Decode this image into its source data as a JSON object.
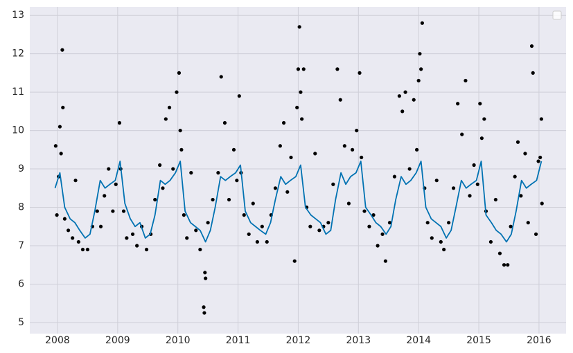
{
  "chart_data": {
    "type": "scatter",
    "xlim": [
      2007.54,
      2016.45
    ],
    "xticks": [
      2008,
      2009,
      2010,
      2011,
      2012,
      2013,
      2014,
      2015,
      2016
    ],
    "ylim": [
      4.71,
      13.22
    ],
    "yticks": [
      5,
      6,
      7,
      8,
      9,
      10,
      11,
      12,
      13
    ],
    "grid": true,
    "background": "#eaeaf2",
    "series": [
      {
        "type": "scatter",
        "color": "#000000",
        "x": [
          2007.97,
          2007.99,
          2008.02,
          2008.04,
          2008.06,
          2008.08,
          2008.09,
          2008.12,
          2008.18,
          2008.25,
          2008.3,
          2008.35,
          2008.42,
          2008.5,
          2008.58,
          2008.66,
          2008.72,
          2008.78,
          2008.85,
          2008.92,
          2008.97,
          2009.03,
          2009.05,
          2009.1,
          2009.15,
          2009.25,
          2009.32,
          2009.4,
          2009.48,
          2009.55,
          2009.62,
          2009.7,
          2009.75,
          2009.8,
          2009.86,
          2009.92,
          2009.98,
          2010.02,
          2010.04,
          2010.06,
          2010.1,
          2010.15,
          2010.22,
          2010.3,
          2010.37,
          2010.43,
          2010.44,
          2010.45,
          2010.46,
          2010.5,
          2010.58,
          2010.67,
          2010.72,
          2010.78,
          2010.85,
          2010.93,
          2010.98,
          2011.02,
          2011.05,
          2011.1,
          2011.18,
          2011.25,
          2011.32,
          2011.4,
          2011.48,
          2011.55,
          2011.62,
          2011.7,
          2011.76,
          2011.82,
          2011.88,
          2011.94,
          2011.98,
          2012.0,
          2012.02,
          2012.04,
          2012.06,
          2012.09,
          2012.14,
          2012.2,
          2012.28,
          2012.35,
          2012.42,
          2012.5,
          2012.58,
          2012.65,
          2012.7,
          2012.77,
          2012.84,
          2012.9,
          2012.97,
          2013.02,
          2013.05,
          2013.1,
          2013.18,
          2013.25,
          2013.32,
          2013.4,
          2013.45,
          2013.52,
          2013.6,
          2013.68,
          2013.73,
          2013.78,
          2013.85,
          2013.92,
          2013.97,
          2014.0,
          2014.02,
          2014.04,
          2014.06,
          2014.1,
          2014.15,
          2014.22,
          2014.3,
          2014.37,
          2014.42,
          2014.5,
          2014.58,
          2014.65,
          2014.72,
          2014.78,
          2014.85,
          2014.92,
          2014.98,
          2015.02,
          2015.05,
          2015.09,
          2015.12,
          2015.2,
          2015.28,
          2015.35,
          2015.42,
          2015.48,
          2015.53,
          2015.6,
          2015.65,
          2015.7,
          2015.77,
          2015.82,
          2015.88,
          2015.9,
          2015.95,
          2015.99,
          2016.02,
          2016.04,
          2016.05
        ],
        "values": [
          9.6,
          7.8,
          8.8,
          10.1,
          9.4,
          12.1,
          10.6,
          7.7,
          7.4,
          7.2,
          8.7,
          7.1,
          6.9,
          6.9,
          7.5,
          7.9,
          7.5,
          8.3,
          9.0,
          7.9,
          8.6,
          10.2,
          9.0,
          7.9,
          7.2,
          7.3,
          7.0,
          7.5,
          6.9,
          7.3,
          8.2,
          9.1,
          8.5,
          10.3,
          10.6,
          9.0,
          11.0,
          11.5,
          10.0,
          9.5,
          7.8,
          7.2,
          8.9,
          7.4,
          6.9,
          5.4,
          5.25,
          6.3,
          6.15,
          7.6,
          8.2,
          8.9,
          11.4,
          10.2,
          8.2,
          9.5,
          8.7,
          10.9,
          8.9,
          7.8,
          7.3,
          8.1,
          7.1,
          7.5,
          7.1,
          7.8,
          8.5,
          9.6,
          10.2,
          8.4,
          9.3,
          6.6,
          10.6,
          11.6,
          12.7,
          11.0,
          10.3,
          11.6,
          8.0,
          7.5,
          9.4,
          7.4,
          7.5,
          7.6,
          8.6,
          11.6,
          10.8,
          9.6,
          8.1,
          9.5,
          10.0,
          11.5,
          9.3,
          7.9,
          7.5,
          7.8,
          7.0,
          7.3,
          6.6,
          7.6,
          8.8,
          10.9,
          10.5,
          11.0,
          9.0,
          10.8,
          9.5,
          11.3,
          12.0,
          11.6,
          12.8,
          8.5,
          7.6,
          7.2,
          8.7,
          7.1,
          6.9,
          7.6,
          8.5,
          10.7,
          9.9,
          11.3,
          8.3,
          9.1,
          8.6,
          10.7,
          9.8,
          10.3,
          7.9,
          7.1,
          8.2,
          6.8,
          6.5,
          6.5,
          7.5,
          8.8,
          9.7,
          8.3,
          9.4,
          7.6,
          12.2,
          11.5,
          7.3,
          9.2,
          9.3,
          10.3,
          8.1
        ]
      },
      {
        "type": "line",
        "color": "#0072b2",
        "x": [
          2007.96,
          2008.04,
          2008.12,
          2008.21,
          2008.29,
          2008.37,
          2008.46,
          2008.54,
          2008.62,
          2008.71,
          2008.79,
          2008.87,
          2008.96,
          2009.04,
          2009.12,
          2009.21,
          2009.29,
          2009.37,
          2009.46,
          2009.54,
          2009.62,
          2009.71,
          2009.79,
          2009.87,
          2009.96,
          2010.04,
          2010.12,
          2010.21,
          2010.29,
          2010.37,
          2010.46,
          2010.54,
          2010.62,
          2010.71,
          2010.79,
          2010.87,
          2010.96,
          2011.04,
          2011.12,
          2011.21,
          2011.29,
          2011.37,
          2011.46,
          2011.54,
          2011.62,
          2011.71,
          2011.79,
          2011.87,
          2011.96,
          2012.04,
          2012.12,
          2012.21,
          2012.29,
          2012.37,
          2012.46,
          2012.54,
          2012.62,
          2012.71,
          2012.79,
          2012.87,
          2012.96,
          2013.04,
          2013.12,
          2013.21,
          2013.29,
          2013.37,
          2013.46,
          2013.54,
          2013.62,
          2013.71,
          2013.79,
          2013.87,
          2013.96,
          2014.04,
          2014.12,
          2014.21,
          2014.29,
          2014.37,
          2014.46,
          2014.54,
          2014.62,
          2014.71,
          2014.79,
          2014.87,
          2014.96,
          2015.04,
          2015.12,
          2015.21,
          2015.29,
          2015.37,
          2015.46,
          2015.54,
          2015.62,
          2015.71,
          2015.79,
          2015.87,
          2015.96,
          2016.04
        ],
        "values": [
          8.5,
          8.9,
          8.0,
          7.7,
          7.6,
          7.4,
          7.2,
          7.3,
          7.9,
          8.7,
          8.5,
          8.6,
          8.7,
          9.2,
          8.1,
          7.7,
          7.5,
          7.6,
          7.2,
          7.3,
          7.8,
          8.7,
          8.6,
          8.7,
          8.9,
          9.2,
          7.9,
          7.6,
          7.5,
          7.4,
          7.1,
          7.4,
          8.0,
          8.8,
          8.7,
          8.8,
          8.9,
          9.1,
          7.9,
          7.6,
          7.5,
          7.4,
          7.3,
          7.6,
          8.2,
          8.8,
          8.6,
          8.7,
          8.8,
          9.1,
          8.0,
          7.8,
          7.7,
          7.6,
          7.3,
          7.4,
          8.2,
          8.9,
          8.6,
          8.8,
          8.9,
          9.2,
          8.0,
          7.8,
          7.6,
          7.5,
          7.3,
          7.5,
          8.2,
          8.8,
          8.6,
          8.7,
          8.9,
          9.2,
          8.0,
          7.7,
          7.6,
          7.5,
          7.2,
          7.4,
          8.0,
          8.7,
          8.5,
          8.6,
          8.7,
          9.2,
          7.8,
          7.6,
          7.4,
          7.3,
          7.1,
          7.3,
          7.9,
          8.7,
          8.5,
          8.6,
          8.7,
          9.2
        ]
      }
    ]
  }
}
